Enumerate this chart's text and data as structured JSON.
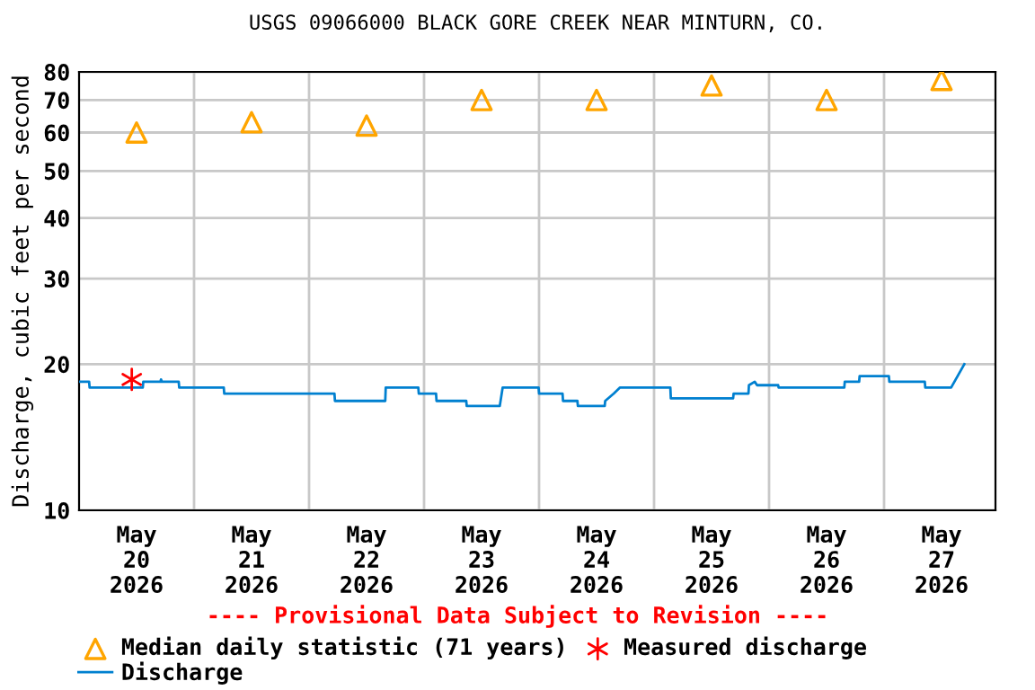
{
  "chart_data": {
    "type": "line",
    "title": "USGS 09066000 BLACK GORE CREEK NEAR MINTURN, CO.",
    "ylabel": "Discharge, cubic feet per second",
    "annotations": [
      "---- Provisional Data Subject to Revision ----"
    ],
    "log": "y",
    "grid": true,
    "legend": "bottom",
    "ylim": [
      10,
      80
    ],
    "yticks": [
      10,
      20,
      30,
      40,
      50,
      60,
      70,
      80
    ],
    "xlim": [
      "2026-05-20T00:00",
      "2026-05-27T23:15"
    ],
    "xticks": [
      {
        "value": "2026-05-20T12:00",
        "label": "May\n20\n2026"
      },
      {
        "value": "2026-05-21T00:00",
        "label": null
      },
      {
        "value": "2026-05-21T12:00",
        "label": "May\n21\n2026"
      },
      {
        "value": "2026-05-22T00:00",
        "label": null
      },
      {
        "value": "2026-05-22T12:00",
        "label": "May\n22\n2026"
      },
      {
        "value": "2026-05-23T00:00",
        "label": null
      },
      {
        "value": "2026-05-23T12:00",
        "label": "May\n23\n2026"
      },
      {
        "value": "2026-05-24T00:00",
        "label": null
      },
      {
        "value": "2026-05-24T12:00",
        "label": "May\n24\n2026"
      },
      {
        "value": "2026-05-25T00:00",
        "label": null
      },
      {
        "value": "2026-05-25T12:00",
        "label": "May\n25\n2026"
      },
      {
        "value": "2026-05-26T00:00",
        "label": null
      },
      {
        "value": "2026-05-26T12:00",
        "label": "May\n26\n2026"
      },
      {
        "value": "2026-05-27T00:00",
        "label": null
      },
      {
        "value": "2026-05-27T12:00",
        "label": "May\n27\n2026"
      }
    ],
    "series": [
      {
        "name": "Median daily statistic (71 years)",
        "type": "scatter",
        "marker": "triangle",
        "color": "#ffa500",
        "x": [
          "2026-05-20T12:00",
          "2026-05-21T12:00",
          "2026-05-22T12:00",
          "2026-05-23T12:00",
          "2026-05-24T12:00",
          "2026-05-25T12:00",
          "2026-05-26T12:00",
          "2026-05-27T12:00"
        ],
        "values": [
          60,
          63,
          62,
          70,
          70,
          75,
          70,
          77
        ]
      },
      {
        "name": "Discharge",
        "marker": "none",
        "line_style": "solid",
        "color": "#0080d0",
        "x": [
          "2026-05-20T00:00",
          "2026-05-20T02:06",
          "2026-05-20T02:12",
          "2026-05-20T13:18",
          "2026-05-20T13:24",
          "2026-05-20T17:00",
          "2026-05-20T17:06",
          "2026-05-20T17:18",
          "2026-05-20T20:48",
          "2026-05-20T20:54",
          "2026-05-21T06:12",
          "2026-05-21T06:18",
          "2026-05-22T05:18",
          "2026-05-22T05:24",
          "2026-05-22T15:54",
          "2026-05-22T16:00",
          "2026-05-22T22:48",
          "2026-05-22T22:54",
          "2026-05-23T02:30",
          "2026-05-23T02:36",
          "2026-05-23T08:48",
          "2026-05-23T08:54",
          "2026-05-23T15:48",
          "2026-05-23T16:24",
          "2026-05-23T23:54",
          "2026-05-24T00:00",
          "2026-05-24T04:54",
          "2026-05-24T05:00",
          "2026-05-24T08:00",
          "2026-05-24T08:06",
          "2026-05-24T13:42",
          "2026-05-24T13:48",
          "2026-05-24T15:36",
          "2026-05-24T16:54",
          "2026-05-25T03:24",
          "2026-05-25T03:30",
          "2026-05-25T16:30",
          "2026-05-25T16:36",
          "2026-05-25T19:42",
          "2026-05-25T19:48",
          "2026-05-25T21:00",
          "2026-05-25T21:30",
          "2026-05-26T01:54",
          "2026-05-26T02:00",
          "2026-05-26T15:42",
          "2026-05-26T15:48",
          "2026-05-26T18:48",
          "2026-05-26T18:54",
          "2026-05-27T01:00",
          "2026-05-27T01:06",
          "2026-05-27T08:30",
          "2026-05-27T08:36",
          "2026-05-27T14:00",
          "2026-05-27T16:45"
        ],
        "values": [
          18.4,
          18.4,
          17.9,
          17.9,
          18.4,
          18.4,
          18.6,
          18.4,
          18.4,
          17.9,
          17.9,
          17.4,
          17.4,
          16.8,
          16.8,
          17.9,
          17.9,
          17.4,
          17.4,
          16.8,
          16.8,
          16.4,
          16.4,
          17.9,
          17.9,
          17.4,
          17.4,
          16.8,
          16.8,
          16.4,
          16.4,
          16.8,
          17.4,
          17.9,
          17.9,
          17.0,
          17.0,
          17.4,
          17.4,
          18.1,
          18.4,
          18.1,
          18.1,
          17.9,
          17.9,
          18.4,
          18.4,
          18.9,
          18.9,
          18.4,
          18.4,
          17.9,
          17.9,
          20
        ]
      },
      {
        "name": "Measured discharge",
        "type": "scatter",
        "marker": "cross",
        "color": "#ff0000",
        "x": [
          "2026-05-20T11:00"
        ],
        "values": [
          18.6
        ]
      }
    ]
  }
}
